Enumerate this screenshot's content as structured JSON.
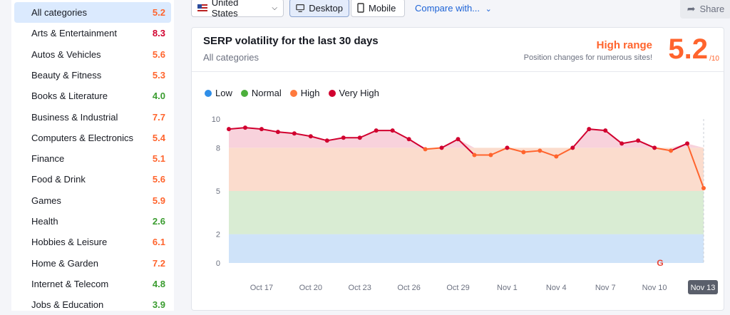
{
  "sidebar": {
    "items": [
      {
        "label": "All categories",
        "score": "5.2",
        "color": "#ff642d",
        "active": true
      },
      {
        "label": "Arts & Entertainment",
        "score": "8.3",
        "color": "#d1002f"
      },
      {
        "label": "Autos & Vehicles",
        "score": "5.6",
        "color": "#ff642d"
      },
      {
        "label": "Beauty & Fitness",
        "score": "5.3",
        "color": "#ff642d"
      },
      {
        "label": "Books & Literature",
        "score": "4.0",
        "color": "#3a9c2f"
      },
      {
        "label": "Business & Industrial",
        "score": "7.7",
        "color": "#ff642d"
      },
      {
        "label": "Computers & Electronics",
        "score": "5.4",
        "color": "#ff642d"
      },
      {
        "label": "Finance",
        "score": "5.1",
        "color": "#ff642d"
      },
      {
        "label": "Food & Drink",
        "score": "5.6",
        "color": "#ff642d"
      },
      {
        "label": "Games",
        "score": "5.9",
        "color": "#ff642d"
      },
      {
        "label": "Health",
        "score": "2.6",
        "color": "#3a9c2f"
      },
      {
        "label": "Hobbies & Leisure",
        "score": "6.1",
        "color": "#ff642d"
      },
      {
        "label": "Home & Garden",
        "score": "7.2",
        "color": "#ff642d"
      },
      {
        "label": "Internet & Telecom",
        "score": "4.8",
        "color": "#3a9c2f"
      },
      {
        "label": "Jobs & Education",
        "score": "3.9",
        "color": "#3a9c2f"
      }
    ]
  },
  "toolbar": {
    "country": "United States",
    "desktop": "Desktop",
    "mobile": "Mobile",
    "compare": "Compare with...",
    "share": "Share"
  },
  "card": {
    "title": "SERP volatility for the last 30 days",
    "subtitle": "All categories",
    "range_label": "High range",
    "range_desc": "Position changes for numerous sites!",
    "score": "5.2",
    "score_max": "/10"
  },
  "legend": [
    {
      "label": "Low",
      "color": "#2f8ee8"
    },
    {
      "label": "Normal",
      "color": "#4caf3c"
    },
    {
      "label": "High",
      "color": "#ff7a3d"
    },
    {
      "label": "Very High",
      "color": "#d1002f"
    }
  ],
  "chart_data": {
    "type": "line",
    "ylim": [
      0,
      10
    ],
    "yticks": [
      0,
      2,
      5,
      8,
      10
    ],
    "bands": [
      {
        "name": "Low",
        "from": 0,
        "to": 2,
        "color": "#cfe3f9"
      },
      {
        "name": "Normal",
        "from": 2,
        "to": 5,
        "color": "#d9ecd3"
      },
      {
        "name": "High",
        "from": 5,
        "to": 8,
        "color": "#fbdccd"
      },
      {
        "name": "Very High",
        "from": 8,
        "to": 10,
        "color": "#f8d2dc"
      }
    ],
    "x_labels": [
      "Oct 17",
      "Oct 20",
      "Oct 23",
      "Oct 26",
      "Oct 29",
      "Nov 1",
      "Nov 4",
      "Nov 7",
      "Nov 10",
      "Nov 13"
    ],
    "x_label_index": [
      2,
      5,
      8,
      11,
      14,
      17,
      20,
      23,
      26,
      29
    ],
    "highlight_label": "Nov 13",
    "values": [
      9.3,
      9.4,
      9.3,
      9.1,
      9.0,
      8.8,
      8.5,
      8.7,
      8.7,
      9.2,
      9.2,
      8.6,
      7.9,
      8.0,
      8.6,
      7.5,
      7.5,
      8.0,
      7.7,
      7.8,
      7.4,
      8.0,
      9.3,
      9.2,
      8.3,
      8.5,
      8.0,
      7.8,
      8.3,
      5.2
    ]
  }
}
